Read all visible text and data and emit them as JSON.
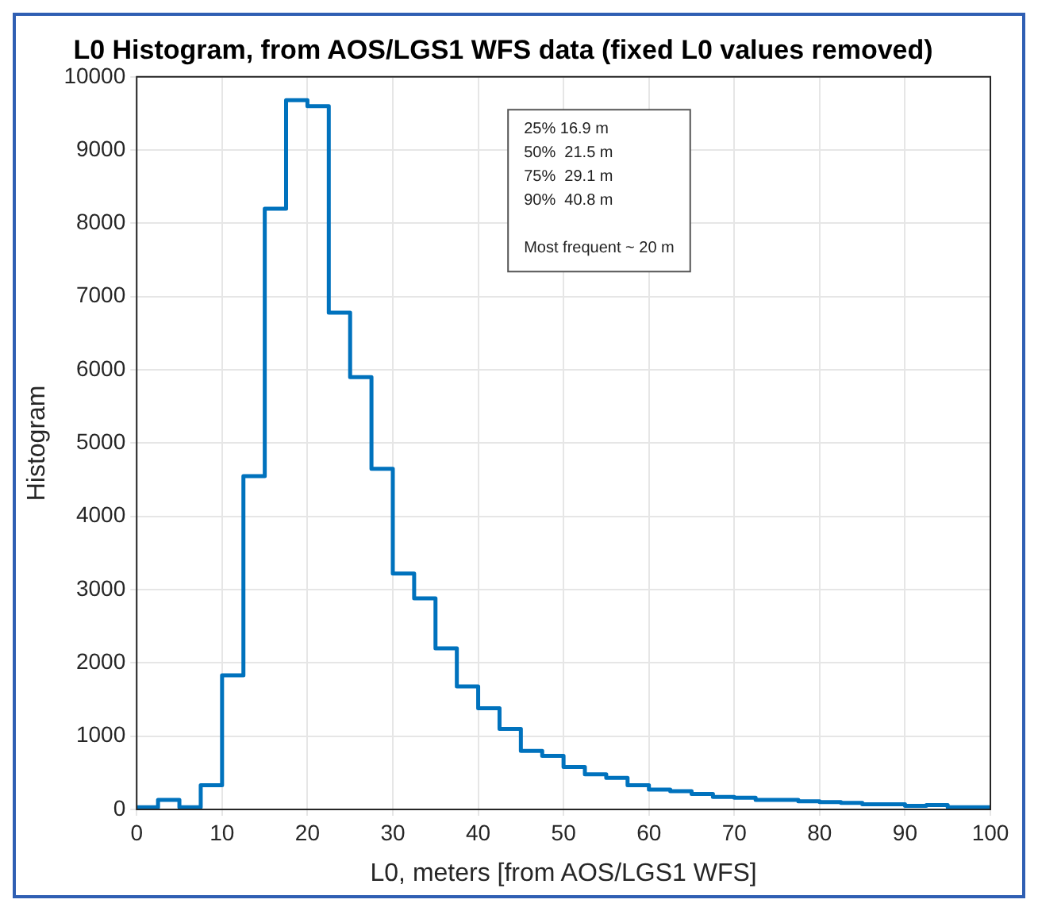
{
  "chart_data": {
    "type": "histogram",
    "title": "L0 Histogram, from AOS/LGS1 WFS data (fixed L0 values removed)",
    "xlabel": "L0, meters [from AOS/LGS1 WFS]",
    "ylabel": "Histogram",
    "bins": [
      0,
      2.5,
      5,
      7.5,
      10,
      12.5,
      15,
      17.5,
      20,
      22.5,
      25,
      27.5,
      30,
      32.5,
      35,
      37.5,
      40,
      42.5,
      45,
      47.5,
      50,
      52.5,
      55,
      57.5,
      60,
      62.5,
      65,
      67.5,
      70,
      72.5,
      75,
      77.5,
      80,
      82.5,
      85,
      87.5,
      90,
      92.5,
      95,
      97.5,
      100
    ],
    "values": [
      30,
      130,
      30,
      330,
      1830,
      4550,
      8200,
      9680,
      9600,
      6780,
      5900,
      4650,
      3220,
      2880,
      2200,
      1680,
      1380,
      1100,
      800,
      730,
      580,
      480,
      430,
      330,
      270,
      250,
      210,
      170,
      160,
      130,
      130,
      110,
      100,
      90,
      70,
      70,
      50,
      60,
      30,
      30
    ],
    "color": "#0072bd",
    "xlim": [
      0,
      100
    ],
    "xticks": [
      0,
      10,
      20,
      30,
      40,
      50,
      60,
      70,
      80,
      90,
      100
    ],
    "ylim": [
      0,
      10000
    ],
    "yticks": [
      0,
      1000,
      2000,
      3000,
      4000,
      5000,
      6000,
      7000,
      8000,
      9000,
      10000
    ],
    "grid": true,
    "legend": false,
    "annotations": [
      "25% 16.9 m",
      "50%  21.5 m",
      "75%  29.1 m",
      "90%  40.8 m",
      "Most frequent ~ 20 m"
    ]
  }
}
